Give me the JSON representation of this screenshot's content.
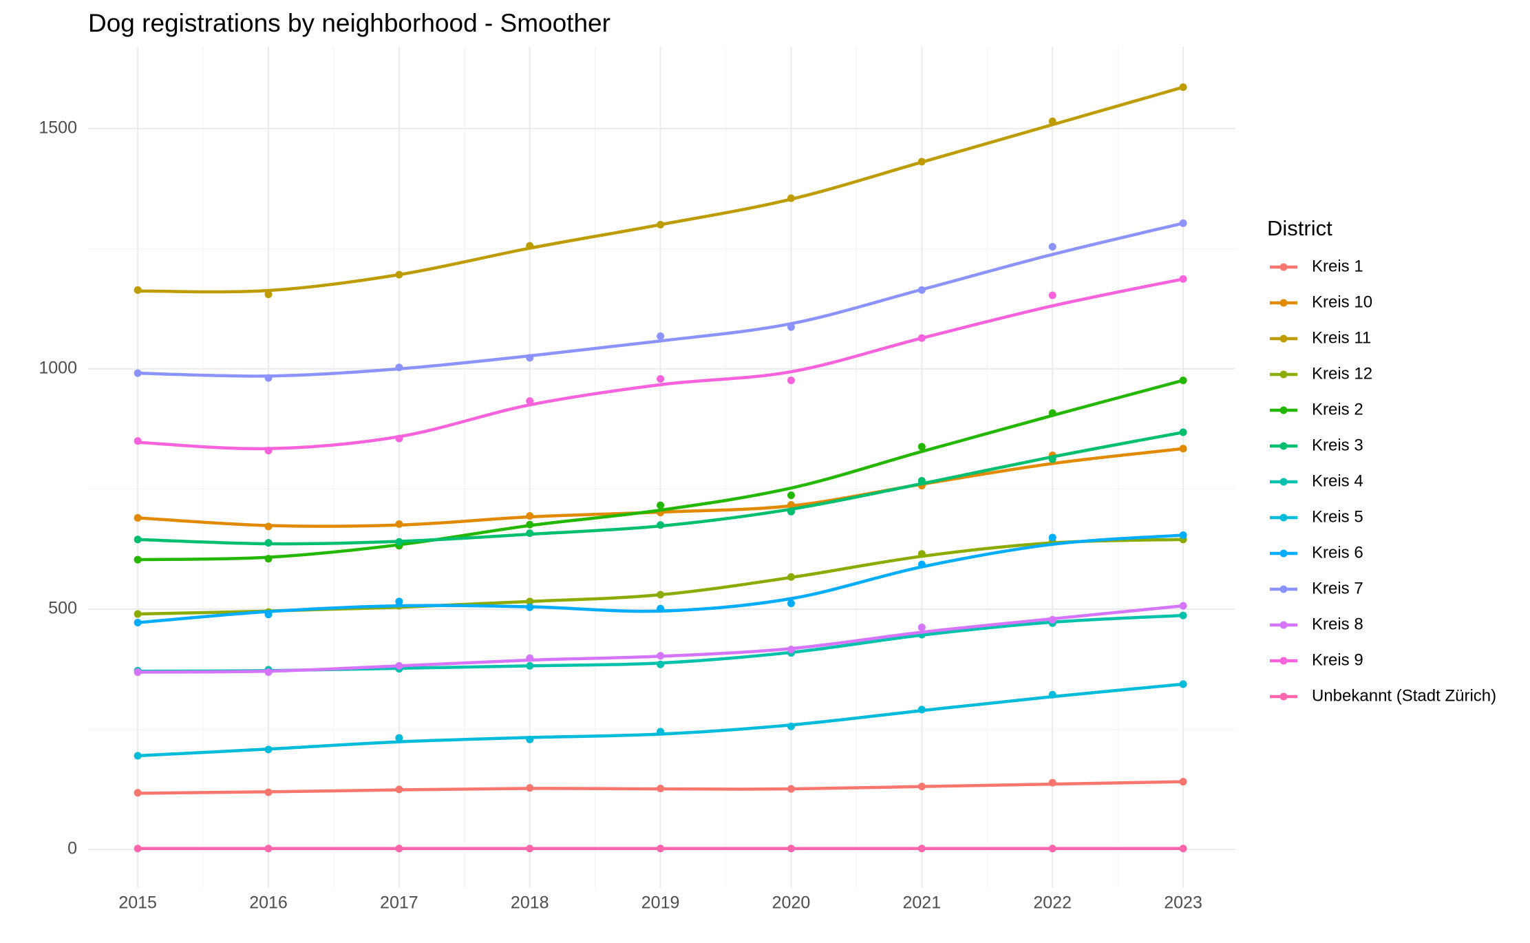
{
  "chart_data": {
    "type": "line",
    "title": "Dog registrations by neighborhood - Smoother",
    "xlabel": "",
    "ylabel": "",
    "x": [
      2015,
      2016,
      2017,
      2018,
      2019,
      2020,
      2021,
      2022,
      2023
    ],
    "x_ticks": [
      "2015",
      "2016",
      "2017",
      "2018",
      "2019",
      "2020",
      "2021",
      "2022",
      "2023"
    ],
    "y_ticks": [
      "0",
      "500",
      "1000",
      "1500"
    ],
    "xlim": [
      2014.62,
      2023.4
    ],
    "ylim": [
      -80,
      1670
    ],
    "grid": true,
    "legend": {
      "title": "District",
      "placement": "right"
    },
    "series": [
      {
        "name": "Kreis 1",
        "color": "#F8766D",
        "points": [
          118,
          119,
          125,
          128,
          127,
          126,
          131,
          139,
          141
        ],
        "smooth": [
          117,
          120,
          124,
          127,
          126,
          126,
          131,
          136,
          141
        ]
      },
      {
        "name": "Kreis 10",
        "color": "#E18A00",
        "points": [
          690,
          672,
          677,
          694,
          701,
          717,
          757,
          820,
          834
        ],
        "smooth": [
          690,
          674,
          675,
          692,
          702,
          715,
          760,
          803,
          834
        ]
      },
      {
        "name": "Kreis 11",
        "color": "#BE9C00",
        "points": [
          1164,
          1155,
          1196,
          1256,
          1300,
          1355,
          1431,
          1515,
          1586
        ],
        "smooth": [
          1162,
          1163,
          1196,
          1251,
          1300,
          1353,
          1430,
          1508,
          1586
        ]
      },
      {
        "name": "Kreis 12",
        "color": "#8CAB00",
        "points": [
          490,
          494,
          507,
          516,
          530,
          567,
          615,
          640,
          645
        ],
        "smooth": [
          490,
          496,
          504,
          516,
          530,
          566,
          610,
          638,
          645
        ]
      },
      {
        "name": "Kreis 2",
        "color": "#24B700",
        "points": [
          603,
          605,
          632,
          676,
          716,
          737,
          838,
          908,
          976
        ],
        "smooth": [
          603,
          608,
          634,
          674,
          706,
          752,
          828,
          903,
          976
        ]
      },
      {
        "name": "Kreis 3",
        "color": "#00BE70",
        "points": [
          645,
          638,
          640,
          658,
          675,
          703,
          767,
          812,
          868
        ],
        "smooth": [
          645,
          636,
          641,
          656,
          673,
          708,
          761,
          817,
          868
        ]
      },
      {
        "name": "Kreis 4",
        "color": "#00C1AB",
        "points": [
          372,
          374,
          376,
          382,
          385,
          409,
          447,
          471,
          487
        ],
        "smooth": [
          371,
          372,
          377,
          382,
          388,
          410,
          446,
          473,
          487
        ]
      },
      {
        "name": "Kreis 5",
        "color": "#00BBDA",
        "points": [
          195,
          208,
          232,
          229,
          245,
          256,
          291,
          322,
          344
        ],
        "smooth": [
          195,
          209,
          224,
          233,
          240,
          259,
          289,
          318,
          344
        ]
      },
      {
        "name": "Kreis 6",
        "color": "#00ACFC",
        "points": [
          472,
          489,
          516,
          504,
          501,
          512,
          593,
          649,
          654
        ],
        "smooth": [
          472,
          495,
          507,
          505,
          496,
          522,
          588,
          635,
          654
        ]
      },
      {
        "name": "Kreis 7",
        "color": "#8B93FF",
        "points": [
          991,
          981,
          1003,
          1023,
          1068,
          1087,
          1164,
          1254,
          1303
        ],
        "smooth": [
          991,
          985,
          1000,
          1027,
          1058,
          1094,
          1165,
          1238,
          1303
        ]
      },
      {
        "name": "Kreis 8",
        "color": "#D575FE",
        "points": [
          369,
          369,
          382,
          398,
          403,
          416,
          462,
          478,
          507
        ],
        "smooth": [
          369,
          371,
          382,
          394,
          402,
          418,
          452,
          480,
          507
        ]
      },
      {
        "name": "Kreis 9",
        "color": "#F962DD",
        "points": [
          850,
          830,
          855,
          933,
          979,
          976,
          1064,
          1153,
          1187
        ],
        "smooth": [
          847,
          834,
          859,
          925,
          967,
          994,
          1064,
          1131,
          1187
        ]
      },
      {
        "name": "Unbekannt (Stadt Zürich)",
        "color": "#FF65AC",
        "points": [
          2,
          2,
          2,
          2,
          2,
          2,
          2,
          2,
          2
        ],
        "smooth": [
          2,
          2,
          2,
          2,
          2,
          2,
          2,
          2,
          2
        ]
      }
    ]
  }
}
